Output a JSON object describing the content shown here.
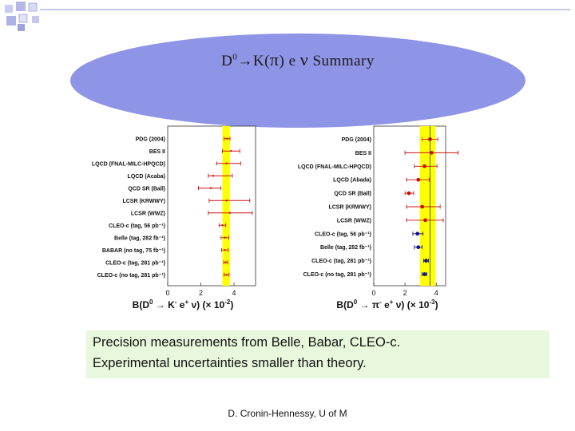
{
  "slide": {
    "title_parts": {
      "d0": "D",
      "sup0": "0",
      "arrow": "→",
      "k": "K(",
      "pi": "π",
      "close": ")",
      "e": "e",
      "nu": "ν",
      "summary": "Summary"
    },
    "note_lines": [
      "Precision measurements from Belle, Babar, CLEO-c.",
      "Experimental uncertainties smaller than theory."
    ],
    "footer": "D. Cronin-Hennessy,  U of M"
  },
  "colors": {
    "accent": "#8f95e6",
    "band": "#ffff00",
    "marker": "#cc1111",
    "exp_marker": "#111199",
    "note_bg": "#e8f8dc"
  },
  "chart_data": [
    {
      "type": "scatter",
      "orientation": "horizontal-error-bars",
      "title": "",
      "xlabel": {
        "main": "B(D",
        "sup": "0",
        "rest": " → K",
        "sup2": "-",
        "rest2": " e",
        "sup3": "+",
        "rest3": " ν) (× 10",
        "sup4": "-2",
        "rest4": ")"
      },
      "xlim": [
        0,
        5.3
      ],
      "xticks": [
        0,
        2,
        4
      ],
      "band": [
        3.3,
        3.75
      ],
      "rows": [
        {
          "label": "PDG (2004)",
          "value": 3.58,
          "lo": 3.4,
          "hi": 3.76
        },
        {
          "label": "BES II",
          "value": 3.82,
          "lo": 3.3,
          "hi": 4.35
        },
        {
          "label": "LQCD (FNAL-MILC-HPQCD)",
          "value": 3.55,
          "lo": 2.95,
          "hi": 4.4
        },
        {
          "label": "LQCD (Acaba)",
          "value": 2.75,
          "lo": 2.45,
          "hi": 3.9
        },
        {
          "label": "QCD SR (Ball)",
          "value": 2.6,
          "lo": 1.85,
          "hi": 3.2
        },
        {
          "label": "LCSR (KRWWY)",
          "value": 3.55,
          "lo": 2.5,
          "hi": 4.95
        },
        {
          "label": "LCSR (WWZ)",
          "value": 3.75,
          "lo": 2.45,
          "hi": 5.1
        },
        {
          "label": "CLEO-c (tag, 56 pb⁻¹)",
          "value": 3.3,
          "lo": 3.1,
          "hi": 3.5
        },
        {
          "label": "Belle (tag, 282 fb⁻¹)",
          "value": 3.45,
          "lo": 3.22,
          "hi": 3.68
        },
        {
          "label": "BABAR (no tag, 75 fb⁻¹)",
          "value": 3.45,
          "lo": 3.25,
          "hi": 3.65
        },
        {
          "label": "CLEO-c (tag, 281 pb⁻¹)",
          "value": 3.5,
          "lo": 3.38,
          "hi": 3.62
        },
        {
          "label": "CLEO-c (no tag, 281 pb⁻¹)",
          "value": 3.55,
          "lo": 3.4,
          "hi": 3.7
        }
      ]
    },
    {
      "type": "scatter",
      "orientation": "horizontal-error-bars",
      "title": "",
      "xlabel": {
        "main": "B(D",
        "sup": "0",
        "rest": " → π",
        "sup2": "-",
        "rest2": " e",
        "sup3": "+",
        "rest3": " ν) (× 10",
        "sup4": "-3",
        "rest4": ")"
      },
      "xlim": [
        0,
        4.6
      ],
      "xticks": [
        0,
        2,
        4
      ],
      "band": [
        2.95,
        3.95
      ],
      "rows": [
        {
          "label": "PDG (2004)",
          "value": 3.6,
          "lo": 3.1,
          "hi": 4.1
        },
        {
          "label": "BES II",
          "value": 3.7,
          "lo": 2.0,
          "hi": 5.4
        },
        {
          "label": "LQCD (FNAL-MILC-HPQCD)",
          "value": 3.25,
          "lo": 2.6,
          "hi": 4.05
        },
        {
          "label": "LQCD (Abada)",
          "value": 2.85,
          "lo": 2.1,
          "hi": 3.55
        },
        {
          "label": "QCD SR (Ball)",
          "value": 2.25,
          "lo": 2.0,
          "hi": 2.55
        },
        {
          "label": "LCSR (KRWWY)",
          "value": 3.1,
          "lo": 2.1,
          "hi": 4.25
        },
        {
          "label": "LCSR (WWZ)",
          "value": 3.3,
          "lo": 2.1,
          "hi": 4.45
        },
        {
          "label": "CLEO-c (tag, 56 pb⁻¹)",
          "value": 2.8,
          "lo": 2.5,
          "hi": 3.15
        },
        {
          "label": "Belle (tag, 282 fb⁻¹)",
          "value": 2.85,
          "lo": 2.6,
          "hi": 3.1
        },
        {
          "label": "CLEO-c (tag, 281 pb⁻¹)",
          "value": 3.35,
          "lo": 3.2,
          "hi": 3.5
        },
        {
          "label": "CLEO-c (no tag, 281 pb⁻¹)",
          "value": 3.25,
          "lo": 3.1,
          "hi": 3.4
        }
      ]
    }
  ]
}
